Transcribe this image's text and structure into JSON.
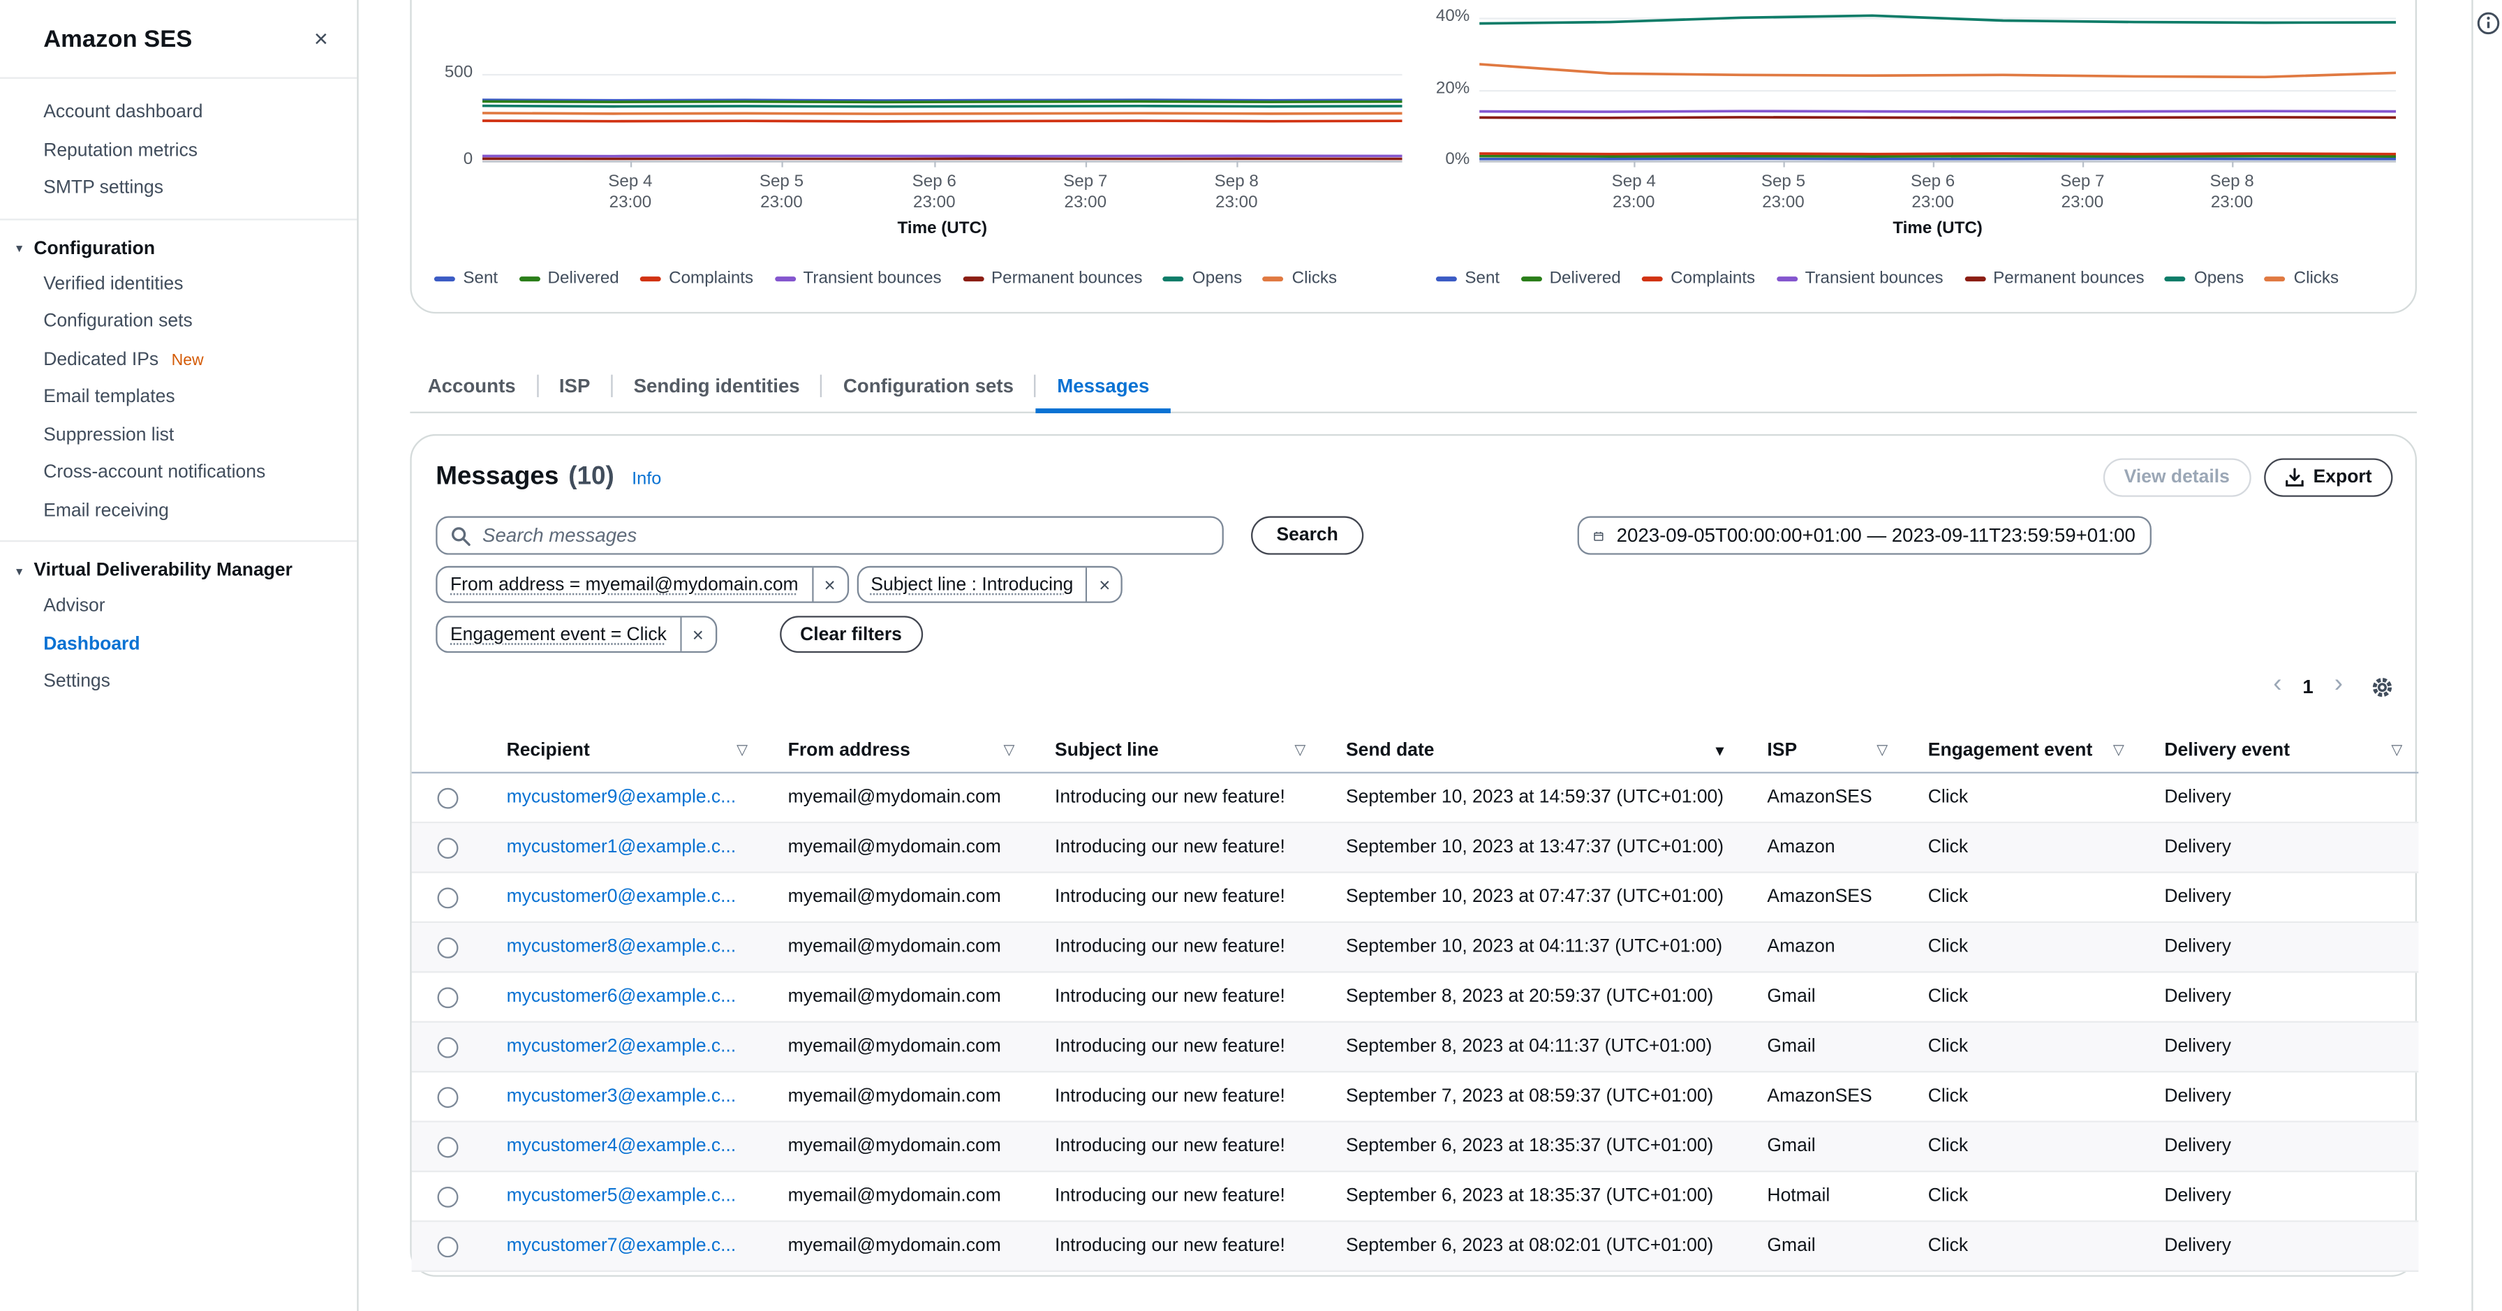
{
  "icons": {
    "close": "×",
    "dismiss_token": "×",
    "section_caret": "▾",
    "filter": "▽",
    "sort_descending": "▼",
    "prev_page": "‹",
    "next_page": "›"
  },
  "colors": {
    "accent": "#0972d3",
    "link": "#0972d3",
    "text": "#0f141a",
    "secondary_text": "#545b64",
    "border": "#d5dbdb",
    "new_badge": "#d45b07"
  },
  "sidebar": {
    "title": "Amazon SES",
    "top_items": [
      {
        "label": "Account dashboard"
      },
      {
        "label": "Reputation metrics"
      },
      {
        "label": "SMTP settings"
      }
    ],
    "sections": [
      {
        "label": "Configuration",
        "items": [
          {
            "label": "Verified identities"
          },
          {
            "label": "Configuration sets"
          },
          {
            "label": "Dedicated IPs",
            "badge": "New"
          },
          {
            "label": "Email templates"
          },
          {
            "label": "Suppression list"
          },
          {
            "label": "Cross-account notifications"
          },
          {
            "label": "Email receiving"
          }
        ]
      },
      {
        "label": "Virtual Deliverability Manager",
        "items": [
          {
            "label": "Advisor"
          },
          {
            "label": "Dashboard",
            "active": true
          },
          {
            "label": "Settings"
          }
        ]
      }
    ]
  },
  "tabs": {
    "items": [
      {
        "label": "Accounts"
      },
      {
        "label": "ISP"
      },
      {
        "label": "Sending identities"
      },
      {
        "label": "Configuration sets"
      },
      {
        "label": "Messages",
        "active": true
      }
    ]
  },
  "panel": {
    "title": "Messages",
    "count": "(10)",
    "info_label": "Info",
    "view_details_label": "View details",
    "export_label": "Export",
    "search_placeholder": "Search messages",
    "search_button_label": "Search",
    "date_range": "2023-09-05T00:00:00+01:00 — 2023-09-11T23:59:59+01:00",
    "filters": {
      "tokens": [
        "From address = myemail@mydomain.com",
        "Subject line : Introducing",
        "Engagement event = Click"
      ],
      "clear_label": "Clear filters"
    },
    "pagination": {
      "page": "1"
    }
  },
  "table": {
    "columns": [
      {
        "label": "Recipient",
        "icon": "filter"
      },
      {
        "label": "From address",
        "icon": "filter"
      },
      {
        "label": "Subject line",
        "icon": "filter"
      },
      {
        "label": "Send date",
        "icon": "sort_descending"
      },
      {
        "label": "ISP",
        "icon": "filter"
      },
      {
        "label": "Engagement event",
        "icon": "filter"
      },
      {
        "label": "Delivery event",
        "icon": "filter"
      }
    ],
    "rows": [
      {
        "recipient": "mycustomer9@example.c...",
        "from": "myemail@mydomain.com",
        "subject": "Introducing our new feature!",
        "send_date": "September 10, 2023 at 14:59:37 (UTC+01:00)",
        "isp": "AmazonSES",
        "engagement": "Click",
        "delivery": "Delivery"
      },
      {
        "recipient": "mycustomer1@example.c...",
        "from": "myemail@mydomain.com",
        "subject": "Introducing our new feature!",
        "send_date": "September 10, 2023 at 13:47:37 (UTC+01:00)",
        "isp": "Amazon",
        "engagement": "Click",
        "delivery": "Delivery"
      },
      {
        "recipient": "mycustomer0@example.c...",
        "from": "myemail@mydomain.com",
        "subject": "Introducing our new feature!",
        "send_date": "September 10, 2023 at 07:47:37 (UTC+01:00)",
        "isp": "AmazonSES",
        "engagement": "Click",
        "delivery": "Delivery"
      },
      {
        "recipient": "mycustomer8@example.c...",
        "from": "myemail@mydomain.com",
        "subject": "Introducing our new feature!",
        "send_date": "September 10, 2023 at 04:11:37 (UTC+01:00)",
        "isp": "Amazon",
        "engagement": "Click",
        "delivery": "Delivery"
      },
      {
        "recipient": "mycustomer6@example.c...",
        "from": "myemail@mydomain.com",
        "subject": "Introducing our new feature!",
        "send_date": "September 8, 2023 at 20:59:37 (UTC+01:00)",
        "isp": "Gmail",
        "engagement": "Click",
        "delivery": "Delivery"
      },
      {
        "recipient": "mycustomer2@example.c...",
        "from": "myemail@mydomain.com",
        "subject": "Introducing our new feature!",
        "send_date": "September 8, 2023 at 04:11:37 (UTC+01:00)",
        "isp": "Gmail",
        "engagement": "Click",
        "delivery": "Delivery"
      },
      {
        "recipient": "mycustomer3@example.c...",
        "from": "myemail@mydomain.com",
        "subject": "Introducing our new feature!",
        "send_date": "September 7, 2023 at 08:59:37 (UTC+01:00)",
        "isp": "AmazonSES",
        "engagement": "Click",
        "delivery": "Delivery"
      },
      {
        "recipient": "mycustomer4@example.c...",
        "from": "myemail@mydomain.com",
        "subject": "Introducing our new feature!",
        "send_date": "September 6, 2023 at 18:35:37 (UTC+01:00)",
        "isp": "Gmail",
        "engagement": "Click",
        "delivery": "Delivery"
      },
      {
        "recipient": "mycustomer5@example.c...",
        "from": "myemail@mydomain.com",
        "subject": "Introducing our new feature!",
        "send_date": "September 6, 2023 at 18:35:37 (UTC+01:00)",
        "isp": "Hotmail",
        "engagement": "Click",
        "delivery": "Delivery"
      },
      {
        "recipient": "mycustomer7@example.c...",
        "from": "myemail@mydomain.com",
        "subject": "Introducing our new feature!",
        "send_date": "September 6, 2023 at 08:02:01 (UTC+01:00)",
        "isp": "Gmail",
        "engagement": "Click",
        "delivery": "Delivery"
      }
    ]
  },
  "chart_data": [
    {
      "type": "line",
      "name": "email-volume-over-time",
      "xlabel": "Time (UTC)",
      "x_ticks": [
        [
          "Sep 4",
          "23:00"
        ],
        [
          "Sep 5",
          "23:00"
        ],
        [
          "Sep 6",
          "23:00"
        ],
        [
          "Sep 7",
          "23:00"
        ],
        [
          "Sep 8",
          "23:00"
        ]
      ],
      "y_ticks": [
        "0",
        "500"
      ],
      "ylim_visible": [
        0,
        925
      ],
      "legend_position": "bottom",
      "grid": true,
      "series": [
        {
          "name": "Sent",
          "color": "#3b5bc4",
          "values": [
            351,
            348,
            350,
            347,
            349,
            351,
            348,
            350
          ]
        },
        {
          "name": "Delivered",
          "color": "#2a7e19",
          "values": [
            342,
            339,
            341,
            338,
            340,
            342,
            339,
            341
          ]
        },
        {
          "name": "Complaints",
          "color": "#d13212",
          "values": [
            231,
            228,
            230,
            227,
            229,
            231,
            228,
            230
          ]
        },
        {
          "name": "Transient bounces",
          "color": "#8456ce",
          "values": [
            28,
            27,
            29,
            28,
            27,
            28,
            29,
            28
          ]
        },
        {
          "name": "Permanent bounces",
          "color": "#8b1d13",
          "values": [
            12,
            11,
            12,
            11,
            12,
            11,
            12,
            11
          ]
        },
        {
          "name": "Opens",
          "color": "#0e7c68",
          "values": [
            317,
            313,
            315,
            312,
            314,
            316,
            313,
            315
          ]
        },
        {
          "name": "Clicks",
          "color": "#e07941",
          "values": [
            275,
            271,
            273,
            270,
            272,
            274,
            271,
            273
          ]
        }
      ]
    },
    {
      "type": "line",
      "name": "email-rates-over-time",
      "xlabel": "Time (UTC)",
      "x_ticks": [
        [
          "Sep 4",
          "23:00"
        ],
        [
          "Sep 5",
          "23:00"
        ],
        [
          "Sep 6",
          "23:00"
        ],
        [
          "Sep 7",
          "23:00"
        ],
        [
          "Sep 8",
          "23:00"
        ]
      ],
      "y_ticks": [
        "0%",
        "20%",
        "40%"
      ],
      "ylim_visible": [
        0,
        45
      ],
      "legend_position": "bottom",
      "grid": true,
      "series": [
        {
          "name": "Sent",
          "color": "#3b5bc4",
          "values": [
            0.5,
            0.5,
            0.6,
            0.5,
            0.5,
            0.6,
            0.5,
            0.5
          ]
        },
        {
          "name": "Delivered",
          "color": "#2a7e19",
          "values": [
            1.3,
            1.2,
            1.3,
            1.2,
            1.3,
            1.2,
            1.3,
            1.2
          ]
        },
        {
          "name": "Complaints",
          "color": "#d13212",
          "values": [
            2.0,
            1.9,
            2.0,
            1.9,
            2.0,
            1.9,
            2.0,
            1.9
          ]
        },
        {
          "name": "Transient bounces",
          "color": "#8456ce",
          "values": [
            13.8,
            13.7,
            13.9,
            13.8,
            13.7,
            13.8,
            13.9,
            13.8
          ]
        },
        {
          "name": "Permanent bounces",
          "color": "#8b1d13",
          "values": [
            12.1,
            12.0,
            12.2,
            12.1,
            12.0,
            12.1,
            12.2,
            12.1
          ]
        },
        {
          "name": "Opens",
          "color": "#0e7c68",
          "values": [
            38.4,
            38.8,
            40.0,
            40.6,
            39.2,
            38.8,
            38.6,
            38.7
          ]
        },
        {
          "name": "Clicks",
          "color": "#e07941",
          "values": [
            27.0,
            24.4,
            24.0,
            23.8,
            24.0,
            23.6,
            23.4,
            24.6
          ]
        }
      ]
    }
  ]
}
